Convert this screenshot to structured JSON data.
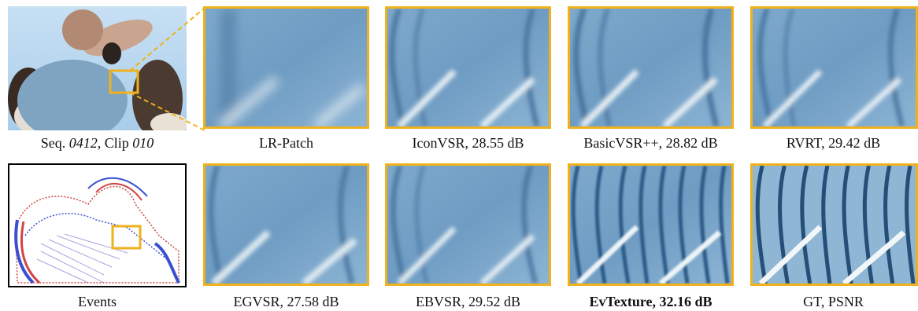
{
  "scene": {
    "caption_main": "Seq. ",
    "seq_id": "0412",
    "caption_mid": ", Clip ",
    "clip_id": "010"
  },
  "events": {
    "caption": "Events"
  },
  "patches_top": [
    {
      "caption": "LR-Patch"
    },
    {
      "caption": "IconVSR, 28.55 dB"
    },
    {
      "caption": "BasicVSR++, 28.82 dB"
    },
    {
      "caption": "RVRT, 29.42 dB"
    }
  ],
  "patches_bottom": [
    {
      "caption": "EGVSR, 27.58 dB"
    },
    {
      "caption": "EBVSR, 29.52 dB"
    },
    {
      "caption": "EvTexture, 32.16 dB"
    },
    {
      "caption": "GT, PSNR"
    }
  ],
  "colors": {
    "highlight_box": "#f0b21c",
    "sky": "#b9d7ee",
    "shirt": "#5f8fb8"
  }
}
